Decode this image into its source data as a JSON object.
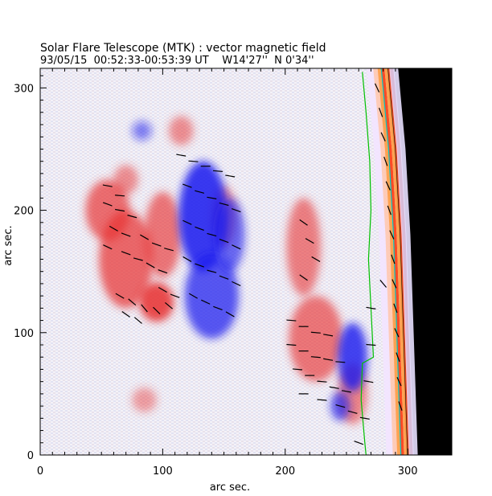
{
  "chart_data": {
    "type": "heatmap",
    "title": "Solar Flare Telescope (MTK) : vector magnetic field",
    "subtitle": "93/05/15  00:52:33-00:53:39 UT    W14'27''  N 0'34''",
    "xlabel": "arc sec.",
    "ylabel": "arc sec.",
    "xlim": [
      0,
      336
    ],
    "ylim": [
      0,
      316
    ],
    "x_ticks": [
      0,
      100,
      200,
      300
    ],
    "y_ticks": [
      0,
      100,
      200,
      300
    ],
    "x_tick_labels": [
      "0",
      "100",
      "200",
      "300"
    ],
    "y_tick_labels": [
      "0",
      "100",
      "200",
      "300"
    ],
    "colors": {
      "positive_polarity": "#e83030",
      "negative_polarity": "#1a1aee",
      "limb_band": "#ff7a00",
      "neutral_line": "#00c000",
      "limb_contour": "#00c8c8",
      "background_beyond_limb": "#000000",
      "vectors": "#000000"
    },
    "series": [
      {
        "name": "",
        "kind": "positive_region",
        "cx": 55,
        "cy": 200,
        "rx": 18,
        "ry": 25,
        "strength": 0.8
      },
      {
        "name": "",
        "kind": "positive_region",
        "cx": 70,
        "cy": 160,
        "rx": 22,
        "ry": 40,
        "strength": 0.85
      },
      {
        "name": "",
        "kind": "positive_region",
        "cx": 95,
        "cy": 125,
        "rx": 14,
        "ry": 16,
        "strength": 1.0
      },
      {
        "name": "",
        "kind": "positive_region",
        "cx": 100,
        "cy": 180,
        "rx": 15,
        "ry": 35,
        "strength": 0.75
      },
      {
        "name": "",
        "kind": "positive_region",
        "cx": 70,
        "cy": 225,
        "rx": 10,
        "ry": 12,
        "strength": 0.6
      },
      {
        "name": "",
        "kind": "positive_region",
        "cx": 115,
        "cy": 265,
        "rx": 10,
        "ry": 12,
        "strength": 0.6
      },
      {
        "name": "",
        "kind": "positive_region",
        "cx": 150,
        "cy": 195,
        "rx": 10,
        "ry": 25,
        "strength": 0.55
      },
      {
        "name": "",
        "kind": "positive_region",
        "cx": 215,
        "cy": 170,
        "rx": 14,
        "ry": 40,
        "strength": 0.7
      },
      {
        "name": "",
        "kind": "positive_region",
        "cx": 225,
        "cy": 95,
        "rx": 22,
        "ry": 35,
        "strength": 0.75
      },
      {
        "name": "",
        "kind": "positive_region",
        "cx": 255,
        "cy": 50,
        "rx": 12,
        "ry": 25,
        "strength": 0.65
      },
      {
        "name": "",
        "kind": "positive_region",
        "cx": 85,
        "cy": 45,
        "rx": 10,
        "ry": 10,
        "strength": 0.5
      },
      {
        "name": "",
        "kind": "negative_region",
        "cx": 133,
        "cy": 195,
        "rx": 20,
        "ry": 45,
        "strength": 1.0
      },
      {
        "name": "",
        "kind": "negative_region",
        "cx": 140,
        "cy": 130,
        "rx": 22,
        "ry": 35,
        "strength": 0.85
      },
      {
        "name": "",
        "kind": "negative_region",
        "cx": 155,
        "cy": 180,
        "rx": 12,
        "ry": 30,
        "strength": 0.75
      },
      {
        "name": "",
        "kind": "negative_region",
        "cx": 255,
        "cy": 80,
        "rx": 12,
        "ry": 28,
        "strength": 0.95
      },
      {
        "name": "",
        "kind": "negative_region",
        "cx": 245,
        "cy": 40,
        "rx": 8,
        "ry": 12,
        "strength": 0.8
      },
      {
        "name": "",
        "kind": "negative_region",
        "cx": 83,
        "cy": 265,
        "rx": 8,
        "ry": 8,
        "strength": 0.6
      }
    ],
    "neutral_line": [
      [
        263,
        313
      ],
      [
        266,
        280
      ],
      [
        269,
        240
      ],
      [
        270,
        200
      ],
      [
        268,
        160
      ],
      [
        270,
        120
      ],
      [
        272,
        80
      ],
      [
        263,
        75
      ],
      [
        262,
        45
      ],
      [
        265,
        10
      ],
      [
        266,
        0
      ]
    ],
    "limb_arc": [
      [
        283,
        316
      ],
      [
        289,
        250
      ],
      [
        293,
        180
      ],
      [
        295,
        120
      ],
      [
        297,
        60
      ],
      [
        299,
        0
      ]
    ],
    "vectors": [
      [
        55,
        220,
        170
      ],
      [
        65,
        212,
        175
      ],
      [
        55,
        205,
        160
      ],
      [
        65,
        200,
        170
      ],
      [
        75,
        195,
        165
      ],
      [
        60,
        185,
        150
      ],
      [
        70,
        180,
        160
      ],
      [
        85,
        178,
        150
      ],
      [
        95,
        172,
        160
      ],
      [
        105,
        168,
        165
      ],
      [
        55,
        170,
        155
      ],
      [
        70,
        165,
        160
      ],
      [
        80,
        160,
        165
      ],
      [
        90,
        155,
        150
      ],
      [
        100,
        150,
        160
      ],
      [
        65,
        130,
        150
      ],
      [
        75,
        125,
        140
      ],
      [
        85,
        120,
        130
      ],
      [
        95,
        118,
        135
      ],
      [
        105,
        122,
        140
      ],
      [
        70,
        115,
        145
      ],
      [
        80,
        110,
        140
      ],
      [
        100,
        135,
        150
      ],
      [
        110,
        130,
        160
      ],
      [
        115,
        245,
        170
      ],
      [
        125,
        240,
        175
      ],
      [
        135,
        236,
        180
      ],
      [
        145,
        232,
        175
      ],
      [
        155,
        228,
        170
      ],
      [
        120,
        220,
        160
      ],
      [
        130,
        215,
        165
      ],
      [
        140,
        210,
        170
      ],
      [
        150,
        205,
        165
      ],
      [
        160,
        200,
        160
      ],
      [
        120,
        190,
        155
      ],
      [
        130,
        185,
        160
      ],
      [
        140,
        180,
        165
      ],
      [
        150,
        175,
        160
      ],
      [
        160,
        170,
        155
      ],
      [
        120,
        160,
        150
      ],
      [
        130,
        155,
        160
      ],
      [
        140,
        150,
        165
      ],
      [
        150,
        145,
        160
      ],
      [
        160,
        140,
        155
      ],
      [
        125,
        130,
        150
      ],
      [
        135,
        125,
        155
      ],
      [
        145,
        120,
        160
      ],
      [
        155,
        115,
        150
      ],
      [
        215,
        190,
        145
      ],
      [
        220,
        175,
        150
      ],
      [
        225,
        160,
        150
      ],
      [
        215,
        145,
        145
      ],
      [
        205,
        110,
        175
      ],
      [
        215,
        105,
        180
      ],
      [
        225,
        100,
        175
      ],
      [
        235,
        98,
        170
      ],
      [
        205,
        90,
        175
      ],
      [
        215,
        85,
        180
      ],
      [
        225,
        80,
        175
      ],
      [
        235,
        78,
        170
      ],
      [
        245,
        76,
        175
      ],
      [
        210,
        70,
        175
      ],
      [
        220,
        65,
        180
      ],
      [
        230,
        60,
        175
      ],
      [
        240,
        55,
        170
      ],
      [
        250,
        52,
        170
      ],
      [
        215,
        50,
        180
      ],
      [
        230,
        45,
        175
      ],
      [
        245,
        40,
        165
      ],
      [
        255,
        35,
        165
      ],
      [
        275,
        300,
        115
      ],
      [
        278,
        280,
        110
      ],
      [
        280,
        260,
        115
      ],
      [
        282,
        240,
        110
      ],
      [
        284,
        220,
        115
      ],
      [
        285,
        200,
        110
      ],
      [
        287,
        180,
        115
      ],
      [
        288,
        160,
        110
      ],
      [
        289,
        140,
        115
      ],
      [
        290,
        120,
        110
      ],
      [
        291,
        100,
        115
      ],
      [
        292,
        80,
        110
      ],
      [
        293,
        60,
        115
      ],
      [
        294,
        40,
        110
      ],
      [
        280,
        140,
        130
      ],
      [
        270,
        120,
        170
      ],
      [
        270,
        90,
        175
      ],
      [
        268,
        60,
        170
      ],
      [
        265,
        30,
        170
      ],
      [
        260,
        10,
        160
      ]
    ]
  }
}
